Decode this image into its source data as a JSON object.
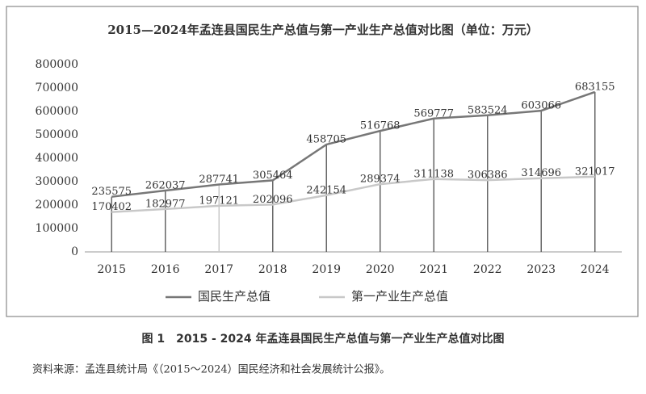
{
  "chart_data": {
    "type": "line",
    "title": "2015—2024年孟连县国民生产总值与第一产业生产总值对比图（单位：万元）",
    "categories": [
      "2015",
      "2016",
      "2017",
      "2018",
      "2019",
      "2020",
      "2021",
      "2022",
      "2023",
      "2024"
    ],
    "series": [
      {
        "name": "国民生产总值",
        "color": "#777777",
        "values": [
          235575,
          262037,
          287741,
          305464,
          458705,
          516768,
          569777,
          583524,
          603066,
          683155
        ]
      },
      {
        "name": "第一产业生产总值",
        "color": "#c8c8c8",
        "values": [
          170402,
          182977,
          197121,
          202096,
          242154,
          289374,
          311138,
          306386,
          314696,
          321017
        ]
      }
    ],
    "ylim": [
      0,
      800000
    ],
    "yticks": [
      0,
      100000,
      200000,
      300000,
      400000,
      500000,
      600000,
      700000,
      800000
    ],
    "grid": false,
    "legend": "bottom"
  },
  "figure_caption": "图 1　2015 - 2024 年孟连县国民生产总值与第一产业生产总值对比图",
  "source": "资料来源：孟连县统计局《（2015～2024）国民经济和社会发展统计公报》。"
}
